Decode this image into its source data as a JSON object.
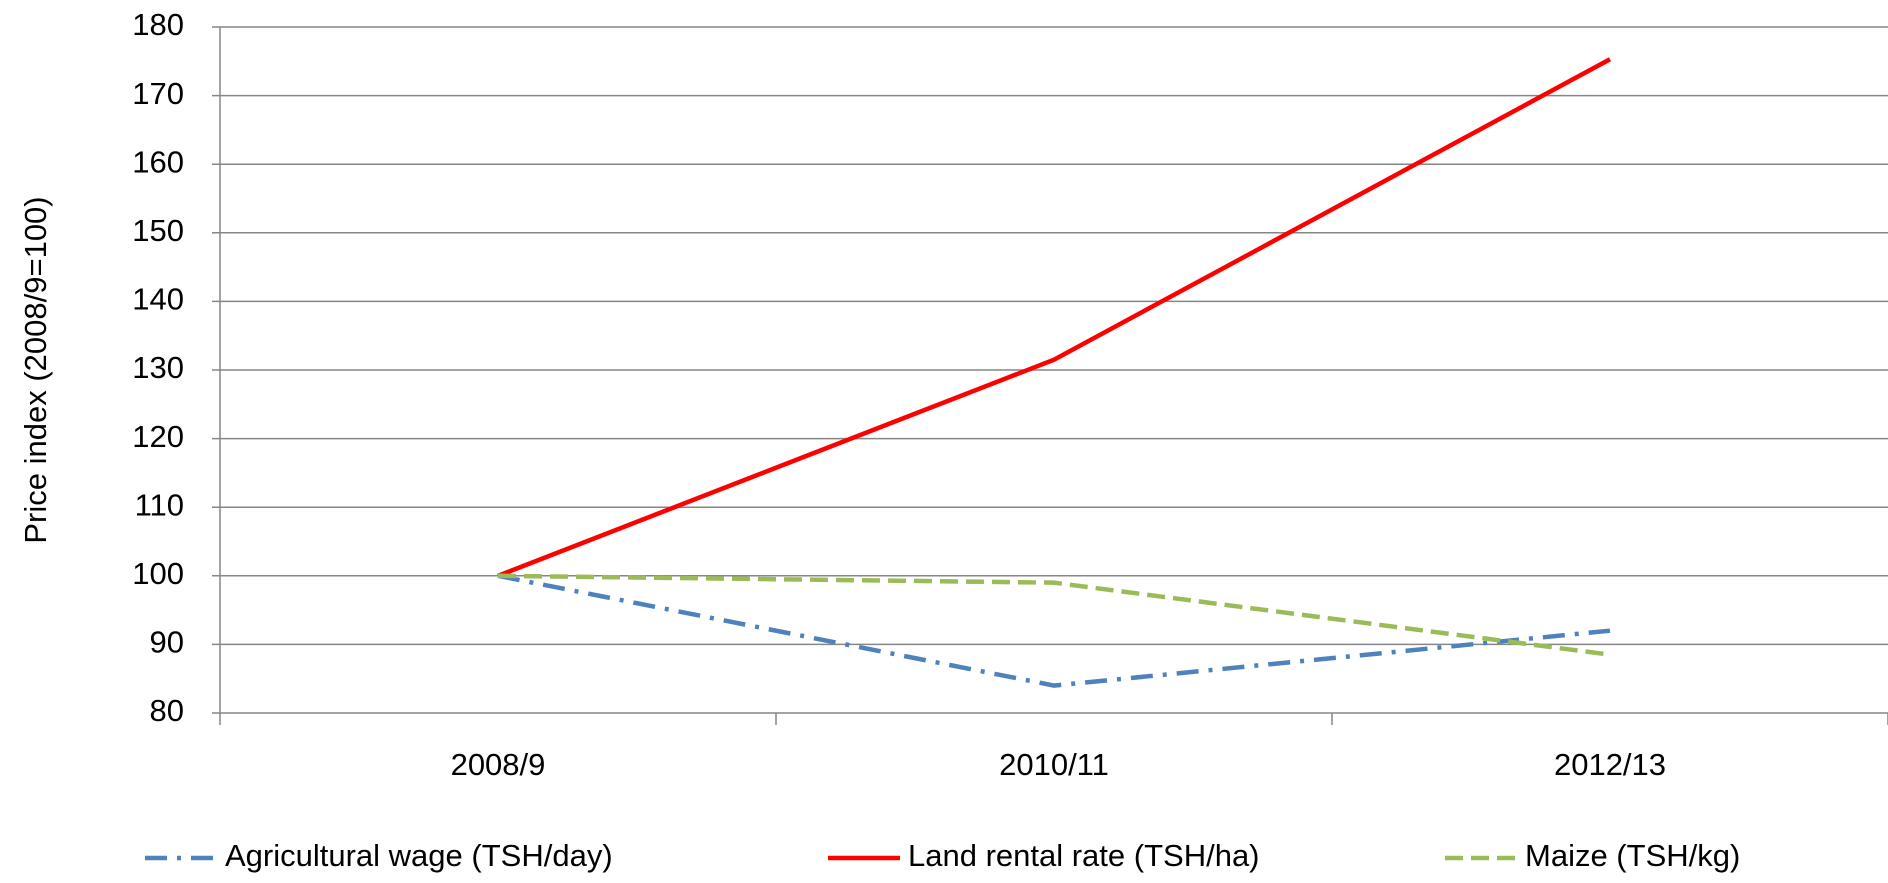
{
  "chart_data": {
    "type": "line",
    "ylabel": "Price index (2008/9=100)",
    "categories": [
      "2008/9",
      "2010/11",
      "2012/13"
    ],
    "series": [
      {
        "name": "Agricultural wage (TSH/day)",
        "color": "#4f81bd",
        "dash": "dashdot",
        "values": [
          100,
          84,
          92
        ]
      },
      {
        "name": "Land rental rate (TSH/ha)",
        "color": "#ff0000",
        "dash": "solid",
        "values": [
          100,
          131.5,
          175.3
        ]
      },
      {
        "name": "Maize (TSH/kg)",
        "color": "#9bbb59",
        "dash": "dash",
        "values": [
          100,
          99,
          88.5
        ]
      }
    ],
    "ylim": [
      80,
      180
    ],
    "yticks": [
      80,
      90,
      100,
      110,
      120,
      130,
      140,
      150,
      160,
      170,
      180
    ],
    "grid": true,
    "legend": "bottom"
  }
}
